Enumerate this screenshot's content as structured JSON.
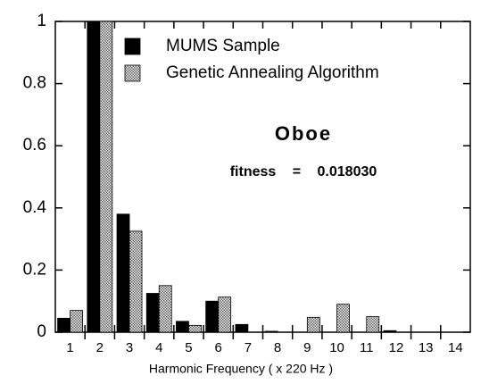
{
  "chart_data": {
    "type": "bar",
    "x_label": "Harmonic Frequency ( x 220 Hz )",
    "annotations": [
      "Oboe",
      "fitness = 0.018030"
    ],
    "categories": [
      "1",
      "2",
      "3",
      "4",
      "5",
      "6",
      "7",
      "8",
      "9",
      "10",
      "11",
      "12",
      "13",
      "14"
    ],
    "series": [
      {
        "name": "MUMS Sample",
        "color": "#000000",
        "pattern": "solid",
        "values": [
          0.045,
          1.0,
          0.38,
          0.125,
          0.035,
          0.1,
          0.025,
          0.003,
          0,
          0,
          0,
          0.005,
          0,
          0
        ]
      },
      {
        "name": "Genetic Annealing Algorithm",
        "color": "#c8c8c8",
        "pattern": "stipple",
        "values": [
          0.07,
          1.0,
          0.325,
          0.15,
          0.022,
          0.113,
          0,
          0,
          0.048,
          0.09,
          0.05,
          0,
          0,
          0
        ]
      }
    ],
    "ylim": [
      0,
      1
    ],
    "yticks": [
      0,
      0.2,
      0.4,
      0.6,
      0.8,
      1
    ],
    "grid": false,
    "legend": "upper right"
  }
}
